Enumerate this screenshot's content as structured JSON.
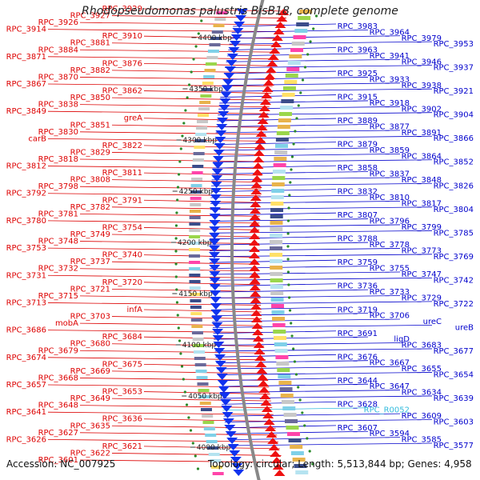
{
  "title": "Rhodopseudomonas palustris BisB18, complete genome",
  "footer": {
    "accession": "Accession: NC_007925",
    "info": "Topology: circular; Length: 5,513,844 bp; Genes: 4,958"
  },
  "colors": {
    "left_label": "#dd0000",
    "right_label": "#0000cc",
    "rna_label": "#33bbdd",
    "reverse_strand": "#ee1111",
    "forward_strand": "#1133ee",
    "backbone": "#888888",
    "scale_dot": "#2a8a2a"
  },
  "scale_marks": [
    "4400 kbp",
    "4350 kbp",
    "4300 kbp",
    "4250 kbp",
    "4200 kbp",
    "4150 kbp",
    "4100 kbp",
    "4050 kbp",
    "4000 kbp"
  ],
  "left_labels": [
    "RPC_3929",
    "RPC_3927",
    "RPC_3926",
    "RPC_3914",
    "RPC_3910",
    "RPC_3881",
    "RPC_3884",
    "RPC_3871",
    "RPC_3876",
    "RPC_3882",
    "RPC_3870",
    "RPC_3867",
    "RPC_3862",
    "RPC_3850",
    "RPC_3838",
    "RPC_3849",
    "greA",
    "RPC_3851",
    "RPC_3830",
    "carB",
    "RPC_3822",
    "RPC_3829",
    "RPC_3818",
    "RPC_3812",
    "RPC_3811",
    "RPC_3808",
    "RPC_3798",
    "RPC_3792",
    "RPC_3791",
    "RPC_3782",
    "RPC_3781",
    "RPC_3780",
    "RPC_3754",
    "RPC_3749",
    "RPC_3748",
    "RPC_3753",
    "RPC_3740",
    "RPC_3737",
    "RPC_3732",
    "RPC_3731",
    "RPC_3720",
    "RPC_3721",
    "RPC_3715",
    "RPC_3713",
    "infA",
    "RPC_3703",
    "mobA",
    "RPC_3686",
    "RPC_3684",
    "RPC_3680",
    "RPC_3679",
    "RPC_3674",
    "RPC_3675",
    "RPC_3669",
    "RPC_3668",
    "RPC_3657",
    "RPC_3653",
    "RPC_3649",
    "RPC_3648",
    "RPC_3641",
    "RPC_3636",
    "RPC_3635",
    "RPC_3627",
    "RPC_3626",
    "RPC_3621",
    "RPC_3622",
    "RPC_3601"
  ],
  "right_labels": [
    "RPC_3983",
    "RPC_3964",
    "RPC_3979",
    "RPC_3953",
    "RPC_3963",
    "RPC_3941",
    "RPC_3946",
    "RPC_3937",
    "RPC_3925",
    "RPC_3933",
    "RPC_3938",
    "RPC_3921",
    "RPC_3915",
    "RPC_3918",
    "RPC_3902",
    "RPC_3904",
    "RPC_3889",
    "RPC_3877",
    "RPC_3891",
    "RPC_3866",
    "RPC_3879",
    "RPC_3859",
    "RPC_3864",
    "RPC_3852",
    "RPC_3858",
    "RPC_3837",
    "RPC_3848",
    "RPC_3826",
    "RPC_3832",
    "RPC_3810",
    "RPC_3817",
    "RPC_3804",
    "RPC_3807",
    "RPC_3796",
    "RPC_3799",
    "RPC_3785",
    "RPC_3788",
    "RPC_3778",
    "RPC_3773",
    "RPC_3769",
    "RPC_3759",
    "RPC_3755",
    "RPC_3747",
    "RPC_3742",
    "RPC_3736",
    "RPC_3733",
    "RPC_3729",
    "RPC_3722",
    "RPC_3719",
    "RPC_3706",
    "ureC",
    "ureB",
    "RPC_3691",
    "ligD",
    "RPC_3683",
    "RPC_3677",
    "RPC_3676",
    "RPC_3667",
    "RPC_3655",
    "RPC_3654",
    "RPC_3644",
    "RPC_3647",
    "RPC_3634",
    "RPC_3639",
    "RPC_3628",
    "RPC_R0052",
    "RPC_3609",
    "RPC_3603",
    "RPC_3607",
    "RPC_3594",
    "RPC_3585",
    "RPC_3577"
  ]
}
